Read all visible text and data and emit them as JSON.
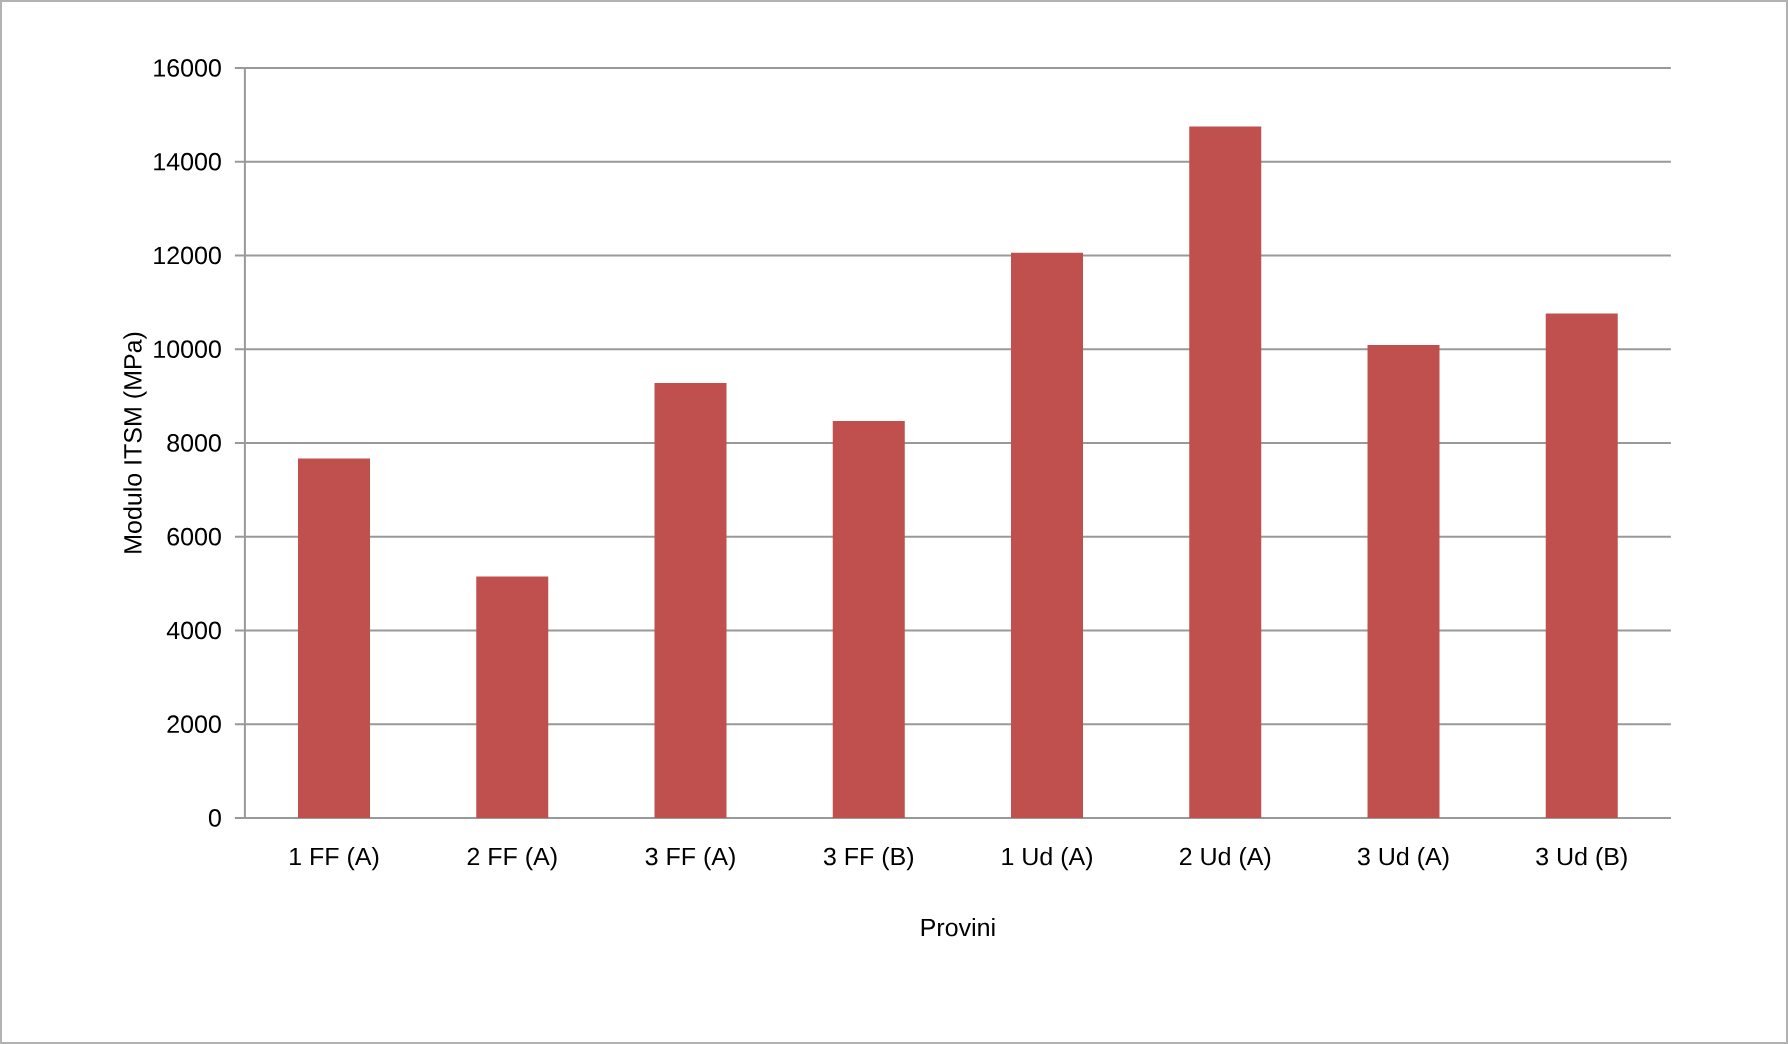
{
  "chart_data": {
    "type": "bar",
    "xlabel": "Provini",
    "ylabel": "Modulo ITSM (MPa)",
    "categories": [
      "1 FF (A)",
      "2 FF (A)",
      "3 FF (A)",
      "3 FF (B)",
      "1 Ud (A)",
      "2 Ud (A)",
      "3 Ud (A)",
      "3 Ud (B)"
    ],
    "values": [
      7670,
      5150,
      9280,
      8470,
      12060,
      14750,
      10090,
      10760
    ],
    "color": "#c0504d",
    "ylim": [
      0,
      16000
    ],
    "yticks": [
      0,
      2000,
      4000,
      6000,
      8000,
      10000,
      12000,
      14000,
      16000
    ],
    "grid": "y"
  }
}
